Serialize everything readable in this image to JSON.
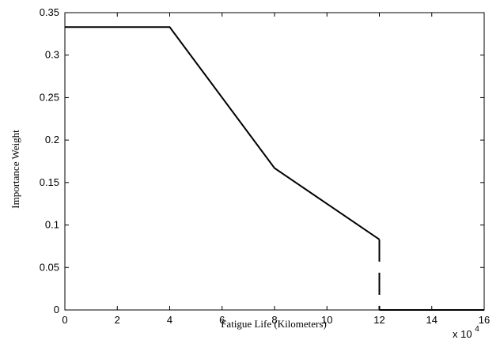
{
  "chart_data": {
    "type": "line",
    "title": "",
    "xlabel": "Fatigue Life (Kilometers)",
    "ylabel": "Importance Weight",
    "xlim": [
      0,
      16
    ],
    "ylim": [
      0,
      0.35
    ],
    "x_scale_label": "x 10",
    "x_scale_exponent": "4",
    "x_ticks": [
      "0",
      "2",
      "4",
      "6",
      "8",
      "10",
      "12",
      "14",
      "16"
    ],
    "y_ticks": [
      "0",
      "0.05",
      "0.1",
      "0.15",
      "0.2",
      "0.25",
      "0.3",
      "0.35"
    ],
    "grid": false,
    "series": [
      {
        "line_style": "solid",
        "color": "#000000",
        "points": [
          {
            "x": 0,
            "y": 0.333
          },
          {
            "x": 4,
            "y": 0.333
          },
          {
            "x": 8,
            "y": 0.167
          },
          {
            "x": 12,
            "y": 0.083
          }
        ]
      },
      {
        "line_style": "dashed",
        "color": "#000000",
        "points": [
          {
            "x": 12,
            "y": 0.083
          },
          {
            "x": 12,
            "y": 0
          }
        ]
      },
      {
        "line_style": "solid",
        "color": "#000000",
        "points": [
          {
            "x": 12,
            "y": 0
          },
          {
            "x": 16,
            "y": 0
          }
        ]
      }
    ]
  }
}
